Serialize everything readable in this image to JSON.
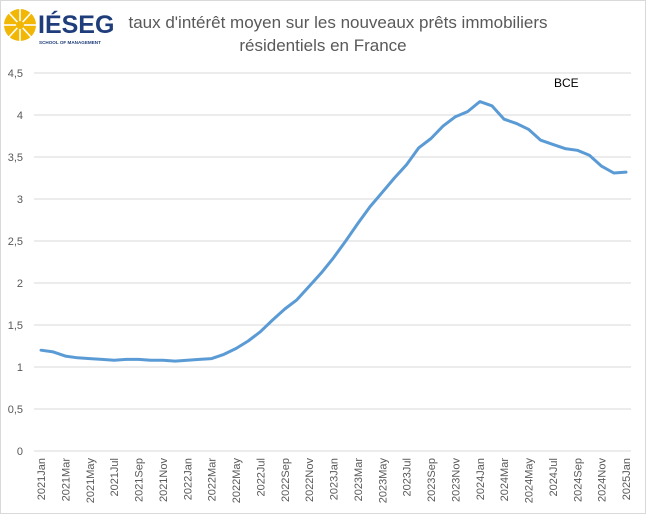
{
  "logo": {
    "name": "IÉSEG",
    "tagline": "SCHOOL OF MANAGEMENT"
  },
  "colors": {
    "line": "#5b9bd5",
    "grid": "#d9d9d9",
    "text": "#595959",
    "logo_blue": "#1f3d7a",
    "logo_yellow": "#f2b705"
  },
  "chart_data": {
    "type": "line",
    "title_lines": [
      "taux d'intérêt moyen sur les nouveaux prêts immobiliers",
      "résidentiels en France"
    ],
    "annotation": "BCE",
    "ylim": [
      0,
      4.5
    ],
    "yticks": [
      "0",
      "0,5",
      "1",
      "1,5",
      "2",
      "2,5",
      "3",
      "3,5",
      "4",
      "4,5"
    ],
    "ytick_values": [
      0,
      0.5,
      1,
      1.5,
      2,
      2.5,
      3,
      3.5,
      4,
      4.5
    ],
    "grid": true,
    "legend": "none",
    "x": [
      "2021Jan",
      "2021Feb",
      "2021Mar",
      "2021Apr",
      "2021May",
      "2021Jun",
      "2021Jul",
      "2021Aug",
      "2021Sep",
      "2021Oct",
      "2021Nov",
      "2021Dec",
      "2022Jan",
      "2022Feb",
      "2022Mar",
      "2022Apr",
      "2022May",
      "2022Jun",
      "2022Jul",
      "2022Aug",
      "2022Sep",
      "2022Oct",
      "2022Nov",
      "2022Dec",
      "2023Jan",
      "2023Feb",
      "2023Mar",
      "2023Apr",
      "2023May",
      "2023Jun",
      "2023Jul",
      "2023Aug",
      "2023Sep",
      "2023Oct",
      "2023Nov",
      "2023Dec",
      "2024Jan",
      "2024Feb",
      "2024Mar",
      "2024Apr",
      "2024May",
      "2024Jun",
      "2024Jul",
      "2024Aug",
      "2024Sep",
      "2024Oct",
      "2024Nov",
      "2024Dec",
      "2025Jan"
    ],
    "xtick_labels": [
      "2021Jan",
      "2021Mar",
      "2021May",
      "2021Jul",
      "2021Sep",
      "2021Nov",
      "2022Jan",
      "2022Mar",
      "2022May",
      "2022Jul",
      "2022Sep",
      "2022Nov",
      "2023Jan",
      "2023Mar",
      "2023May",
      "2023Jul",
      "2023Sep",
      "2023Nov",
      "2024Jan",
      "2024Mar",
      "2024May",
      "2024Jul",
      "2024Sep",
      "2024Nov",
      "2025Jan"
    ],
    "values": [
      1.2,
      1.18,
      1.13,
      1.11,
      1.1,
      1.09,
      1.08,
      1.09,
      1.09,
      1.08,
      1.08,
      1.07,
      1.08,
      1.09,
      1.1,
      1.15,
      1.22,
      1.31,
      1.42,
      1.56,
      1.69,
      1.8,
      1.96,
      2.12,
      2.3,
      2.5,
      2.71,
      2.91,
      3.08,
      3.25,
      3.41,
      3.61,
      3.72,
      3.87,
      3.98,
      4.04,
      4.16,
      4.11,
      3.95,
      3.9,
      3.83,
      3.7,
      3.65,
      3.6,
      3.58,
      3.52,
      3.39,
      3.31,
      3.32
    ]
  }
}
